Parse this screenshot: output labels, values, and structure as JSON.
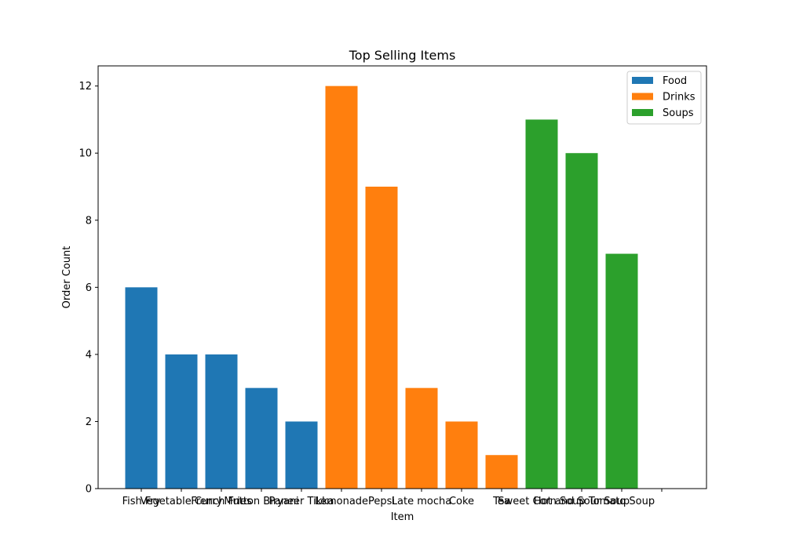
{
  "chart_data": {
    "type": "bar",
    "title": "Top Selling Items",
    "xlabel": "Item",
    "ylabel": "Order Count",
    "ylim": [
      0,
      12.6
    ],
    "yticks": [
      0,
      2,
      4,
      6,
      8,
      10,
      12
    ],
    "grid": false,
    "legend_position": "top-right",
    "categories": [
      "Fish Fry",
      "Vegetable Curry",
      "French Fries",
      "Mutton Biryani",
      "Paneer Tikka",
      "Lemonade",
      "Pepsi",
      "Late mocha",
      "Coke",
      "Tea",
      "Sweet Corn Soup",
      "Hot and Sour Soup",
      "Tomato Soup",
      ""
    ],
    "series": [
      {
        "name": "Food",
        "color": "#1f77b4",
        "values": [
          6,
          4,
          4,
          3,
          2,
          null,
          null,
          null,
          null,
          null,
          null,
          null,
          null,
          null
        ]
      },
      {
        "name": "Drinks",
        "color": "#ff7f0e",
        "values": [
          null,
          null,
          null,
          null,
          null,
          12,
          9,
          3,
          2,
          1,
          null,
          null,
          null,
          null
        ]
      },
      {
        "name": "Soups",
        "color": "#2ca02c",
        "values": [
          null,
          null,
          null,
          null,
          null,
          null,
          null,
          null,
          null,
          null,
          11,
          10,
          7,
          null
        ]
      }
    ]
  }
}
